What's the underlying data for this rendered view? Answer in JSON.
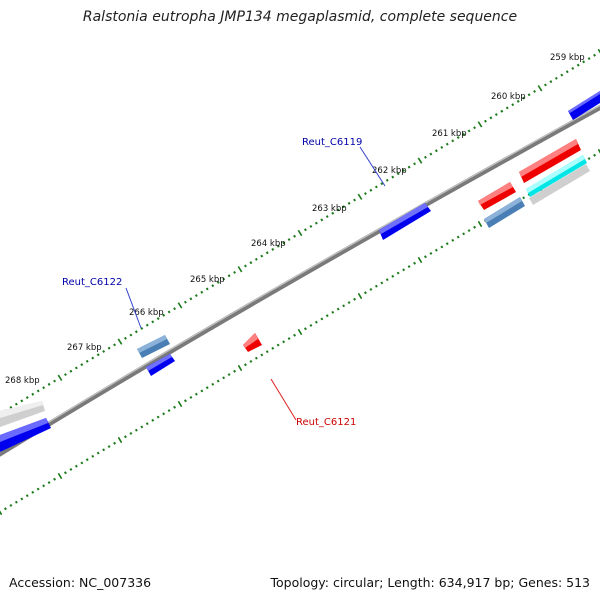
{
  "title": "Ralstonia eutropha JMP134 megaplasmid, complete sequence",
  "footer": {
    "accession": "Accession: NC_007336",
    "topology": "Topology: circular; Length: 634,917 bp; Genes: 513"
  },
  "colors": {
    "backbone": "#808080",
    "tick": "#1a7a1a",
    "forward_gene": "#0000ee",
    "reverse_gene": "#ee0000",
    "steelblue_gene": "#4a7fb5",
    "cyan_gene": "#00e5e5",
    "gray_gene": "#cccccc",
    "label_blue": "#0000aa",
    "label_red": "#cc0000"
  },
  "scale_labels": [
    "259 kbp",
    "260 kbp",
    "261 kbp",
    "262 kbp",
    "263 kbp",
    "264 kbp",
    "265 kbp",
    "266 kbp",
    "267 kbp",
    "268 kbp"
  ],
  "gene_labels": [
    {
      "text": "Reut_C6119",
      "strand": "forward"
    },
    {
      "text": "Reut_C6122",
      "strand": "forward"
    },
    {
      "text": "Reut_C6121",
      "strand": "reverse"
    }
  ]
}
